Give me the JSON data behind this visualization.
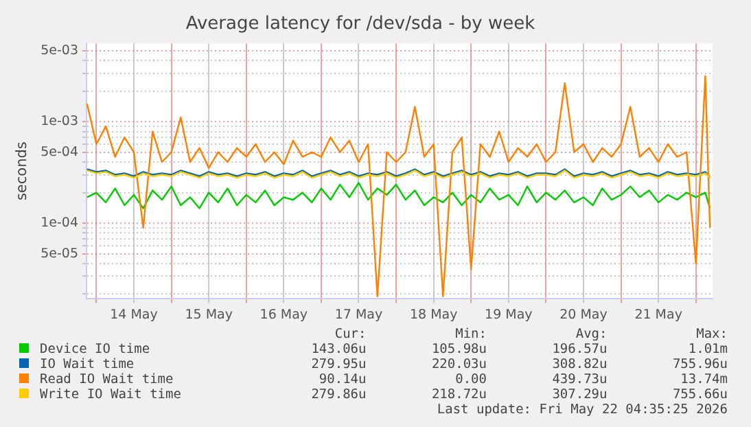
{
  "chart_data": {
    "type": "line",
    "title": "Average latency for /dev/sda - by week",
    "ylabel": "seconds",
    "log": "y",
    "grid": true,
    "legend": "bottom",
    "marker": "none",
    "line_style": "solid",
    "xlim": [
      "2026-05-13T20:50",
      "2026-05-22T05:20"
    ],
    "xticks": [
      {
        "value": "2026-05-14T00:00",
        "label": null
      },
      {
        "value": "2026-05-14T12:00",
        "label": "14 May"
      },
      {
        "value": "2026-05-15T00:00",
        "label": null
      },
      {
        "value": "2026-05-15T12:00",
        "label": "15 May"
      },
      {
        "value": "2026-05-16T00:00",
        "label": null
      },
      {
        "value": "2026-05-16T12:00",
        "label": "16 May"
      },
      {
        "value": "2026-05-17T00:00",
        "label": null
      },
      {
        "value": "2026-05-17T12:00",
        "label": "17 May"
      },
      {
        "value": "2026-05-18T00:00",
        "label": null
      },
      {
        "value": "2026-05-18T12:00",
        "label": "18 May"
      },
      {
        "value": "2026-05-19T00:00",
        "label": null
      },
      {
        "value": "2026-05-19T12:00",
        "label": "19 May"
      },
      {
        "value": "2026-05-20T00:00",
        "label": null
      },
      {
        "value": "2026-05-20T12:00",
        "label": "20 May"
      },
      {
        "value": "2026-05-21T00:00",
        "label": null
      },
      {
        "value": "2026-05-21T12:00",
        "label": "21 May"
      },
      {
        "value": "2026-05-22T00:00",
        "label": null
      }
    ],
    "ylim": [
      1.8e-05,
      0.0059
    ],
    "yticks": [
      {
        "value": 2e-05,
        "label": null
      },
      {
        "value": 3e-05,
        "label": null
      },
      {
        "value": 4e-05,
        "label": null
      },
      {
        "value": 5e-05,
        "label": "5e-05"
      },
      {
        "value": 6e-05,
        "label": null
      },
      {
        "value": 7e-05,
        "label": null
      },
      {
        "value": 8e-05,
        "label": null
      },
      {
        "value": 9e-05,
        "label": null
      },
      {
        "value": 0.0001,
        "label": "1e-04"
      },
      {
        "value": 0.0002,
        "label": null
      },
      {
        "value": 0.0003,
        "label": null
      },
      {
        "value": 0.0004,
        "label": null
      },
      {
        "value": 0.0005,
        "label": "5e-04"
      },
      {
        "value": 0.0006,
        "label": null
      },
      {
        "value": 0.0007,
        "label": null
      },
      {
        "value": 0.0008,
        "label": null
      },
      {
        "value": 0.0009,
        "label": null
      },
      {
        "value": 0.001,
        "label": "1e-03"
      },
      {
        "value": 0.002,
        "label": null
      },
      {
        "value": 0.003,
        "label": null
      },
      {
        "value": 0.004,
        "label": null
      },
      {
        "value": 0.005,
        "label": "5e-03"
      }
    ],
    "x": [
      "2026-05-13T21:00",
      "2026-05-14T00:00",
      "2026-05-14T03:00",
      "2026-05-14T06:00",
      "2026-05-14T09:00",
      "2026-05-14T12:00",
      "2026-05-14T15:00",
      "2026-05-14T18:00",
      "2026-05-14T21:00",
      "2026-05-15T00:00",
      "2026-05-15T03:00",
      "2026-05-15T06:00",
      "2026-05-15T09:00",
      "2026-05-15T12:00",
      "2026-05-15T15:00",
      "2026-05-15T18:00",
      "2026-05-15T21:00",
      "2026-05-16T00:00",
      "2026-05-16T03:00",
      "2026-05-16T06:00",
      "2026-05-16T09:00",
      "2026-05-16T12:00",
      "2026-05-16T15:00",
      "2026-05-16T18:00",
      "2026-05-16T21:00",
      "2026-05-17T00:00",
      "2026-05-17T03:00",
      "2026-05-17T06:00",
      "2026-05-17T09:00",
      "2026-05-17T12:00",
      "2026-05-17T15:00",
      "2026-05-17T18:00",
      "2026-05-17T21:00",
      "2026-05-18T00:00",
      "2026-05-18T03:00",
      "2026-05-18T06:00",
      "2026-05-18T09:00",
      "2026-05-18T12:00",
      "2026-05-18T15:00",
      "2026-05-18T18:00",
      "2026-05-18T21:00",
      "2026-05-19T00:00",
      "2026-05-19T03:00",
      "2026-05-19T06:00",
      "2026-05-19T09:00",
      "2026-05-19T12:00",
      "2026-05-19T15:00",
      "2026-05-19T18:00",
      "2026-05-19T21:00",
      "2026-05-20T00:00",
      "2026-05-20T03:00",
      "2026-05-20T06:00",
      "2026-05-20T09:00",
      "2026-05-20T12:00",
      "2026-05-20T15:00",
      "2026-05-20T18:00",
      "2026-05-20T21:00",
      "2026-05-21T00:00",
      "2026-05-21T03:00",
      "2026-05-21T06:00",
      "2026-05-21T09:00",
      "2026-05-21T12:00",
      "2026-05-21T15:00",
      "2026-05-21T18:00",
      "2026-05-21T21:00",
      "2026-05-22T00:00",
      "2026-05-22T03:00",
      "2026-05-22T04:30"
    ],
    "series": [
      {
        "name": "Device IO time",
        "color": "#00cc00",
        "values": [
          0.00018,
          0.0002,
          0.00016,
          0.00022,
          0.00015,
          0.00019,
          0.00014,
          0.00021,
          0.00017,
          0.00023,
          0.00015,
          0.00018,
          0.00014,
          0.0002,
          0.00016,
          0.00022,
          0.00015,
          0.00019,
          0.00016,
          0.00021,
          0.00015,
          0.00018,
          0.00017,
          0.0002,
          0.00016,
          0.00022,
          0.00017,
          0.00024,
          0.00018,
          0.00025,
          0.00017,
          0.00022,
          0.00019,
          0.00024,
          0.00017,
          0.00021,
          0.00015,
          0.00018,
          0.00016,
          0.0002,
          0.00015,
          0.00019,
          0.00016,
          0.00022,
          0.00017,
          0.00019,
          0.00015,
          0.00023,
          0.00016,
          0.0002,
          0.00017,
          0.00021,
          0.00016,
          0.00018,
          0.00015,
          0.00022,
          0.00017,
          0.00019,
          0.00023,
          0.00018,
          0.00021,
          0.00016,
          0.00019,
          0.00017,
          0.0002,
          0.00018,
          0.0002,
          0.00014
        ]
      },
      {
        "name": "IO Wait time",
        "color": "#0066b3",
        "values": [
          0.00034,
          0.00032,
          0.00033,
          0.0003,
          0.00031,
          0.00029,
          0.00032,
          0.0003,
          0.00031,
          0.0003,
          0.00033,
          0.00031,
          0.00029,
          0.00032,
          0.0003,
          0.00031,
          0.00029,
          0.00031,
          0.0003,
          0.00032,
          0.00029,
          0.00031,
          0.0003,
          0.00033,
          0.00029,
          0.00031,
          0.00033,
          0.0003,
          0.00032,
          0.00029,
          0.00031,
          0.0003,
          0.00032,
          0.00029,
          0.00031,
          0.00034,
          0.0003,
          0.00032,
          0.00029,
          0.00031,
          0.00033,
          0.0003,
          0.00032,
          0.00029,
          0.00031,
          0.0003,
          0.00032,
          0.00029,
          0.00031,
          0.00031,
          0.0003,
          0.00034,
          0.00029,
          0.00031,
          0.0003,
          0.00032,
          0.00029,
          0.00031,
          0.00033,
          0.0003,
          0.00031,
          0.00029,
          0.00032,
          0.0003,
          0.00031,
          0.0003,
          0.00032,
          0.00028
        ]
      },
      {
        "name": "Read IO Wait time",
        "color": "#ff8000",
        "values": [
          0.0015,
          0.0006,
          0.0009,
          0.00045,
          0.0007,
          0.0005,
          9e-05,
          0.0008,
          0.0004,
          0.0005,
          0.0011,
          0.0004,
          0.00055,
          0.00035,
          0.0005,
          0.0004,
          0.00055,
          0.00045,
          0.0006,
          0.0004,
          0.0005,
          0.00038,
          0.00065,
          0.00045,
          0.0005,
          0.00045,
          0.0007,
          0.0005,
          0.00065,
          0.0004,
          0.0006,
          1.9e-05,
          0.0005,
          0.0004,
          0.0005,
          0.0014,
          0.00045,
          0.0006,
          1.9e-05,
          0.0005,
          0.0007,
          3.5e-05,
          0.0006,
          0.00045,
          0.0008,
          0.0004,
          0.00055,
          0.00045,
          0.0006,
          0.0004,
          0.0005,
          0.0024,
          0.0005,
          0.0006,
          0.0004,
          0.00055,
          0.00045,
          0.0006,
          0.0014,
          0.00045,
          0.00055,
          0.0004,
          0.0006,
          0.00045,
          0.0005,
          4e-05,
          0.0028,
          9e-05
        ]
      },
      {
        "name": "Write IO Wait time",
        "color": "#ffcc00",
        "values": [
          0.00033,
          0.00031,
          0.00032,
          0.00029,
          0.0003,
          0.00028,
          0.00031,
          0.00029,
          0.0003,
          0.00029,
          0.00032,
          0.0003,
          0.00028,
          0.00031,
          0.00029,
          0.0003,
          0.00028,
          0.0003,
          0.00029,
          0.00031,
          0.00028,
          0.0003,
          0.00029,
          0.00032,
          0.00028,
          0.0003,
          0.00032,
          0.00029,
          0.00031,
          0.00028,
          0.0003,
          0.00029,
          0.00031,
          0.00028,
          0.0003,
          0.00033,
          0.00029,
          0.00031,
          0.00028,
          0.0003,
          0.00032,
          0.00029,
          0.00031,
          0.00028,
          0.0003,
          0.00029,
          0.00031,
          0.00028,
          0.0003,
          0.0003,
          0.00029,
          0.00033,
          0.00028,
          0.0003,
          0.00029,
          0.00031,
          0.00028,
          0.0003,
          0.00032,
          0.00029,
          0.0003,
          0.00028,
          0.00031,
          0.00029,
          0.0003,
          0.00029,
          0.00031,
          0.00028
        ]
      }
    ],
    "annotations": [
      "Cur:",
      "Min:",
      "Avg:",
      "Max:",
      "143.06u",
      "105.98u",
      "196.57u",
      "1.01m",
      "279.95u",
      "220.03u",
      "308.82u",
      "755.96u",
      "90.14u",
      "0.00",
      "439.73u",
      "13.74m",
      "279.86u",
      "218.72u",
      "307.29u",
      "755.66u",
      "Last update: Fri May 22 04:35:25 2026"
    ]
  }
}
